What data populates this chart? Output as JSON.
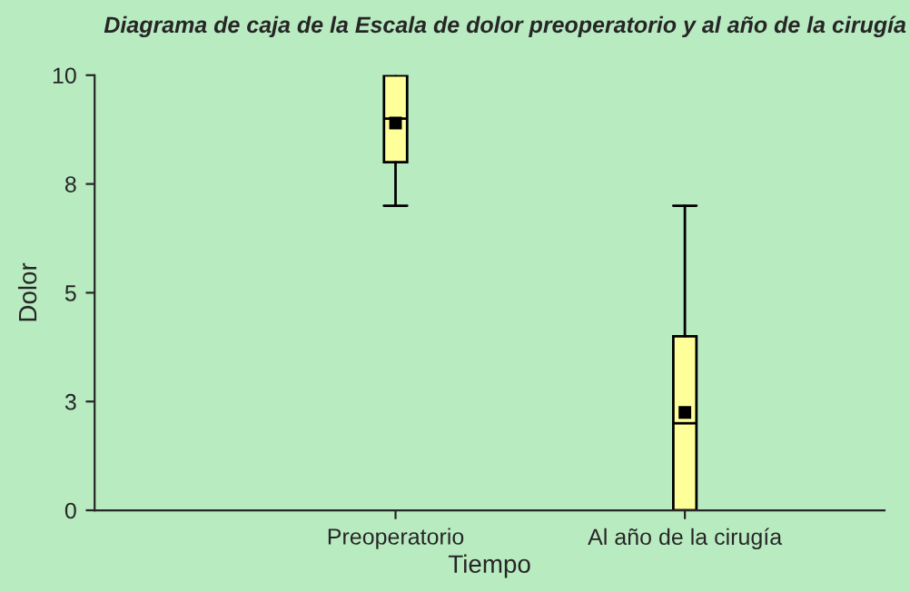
{
  "chart_data": {
    "type": "box",
    "title": "Diagrama de caja de la Escala de dolor preoperatorio y al año de la cirugía",
    "xlabel": "Tiempo",
    "ylabel": "Dolor",
    "categories": [
      "Preoperatorio",
      "Al año de la cirugía"
    ],
    "boxes": [
      {
        "low": 7,
        "q1": 8,
        "median": 9,
        "q3": 10,
        "high": 10,
        "mean": 8.9
      },
      {
        "low": 0,
        "q1": 0,
        "median": 2,
        "q3": 4,
        "high": 7,
        "mean": 2.25
      }
    ],
    "color": "#ffff99",
    "ylim": [
      0,
      10
    ],
    "yticks": [
      0,
      {
        "value": 2.5,
        "label": "3"
      },
      5,
      {
        "value": 7.5,
        "label": "8"
      },
      10
    ],
    "grid": false,
    "legend": false
  }
}
